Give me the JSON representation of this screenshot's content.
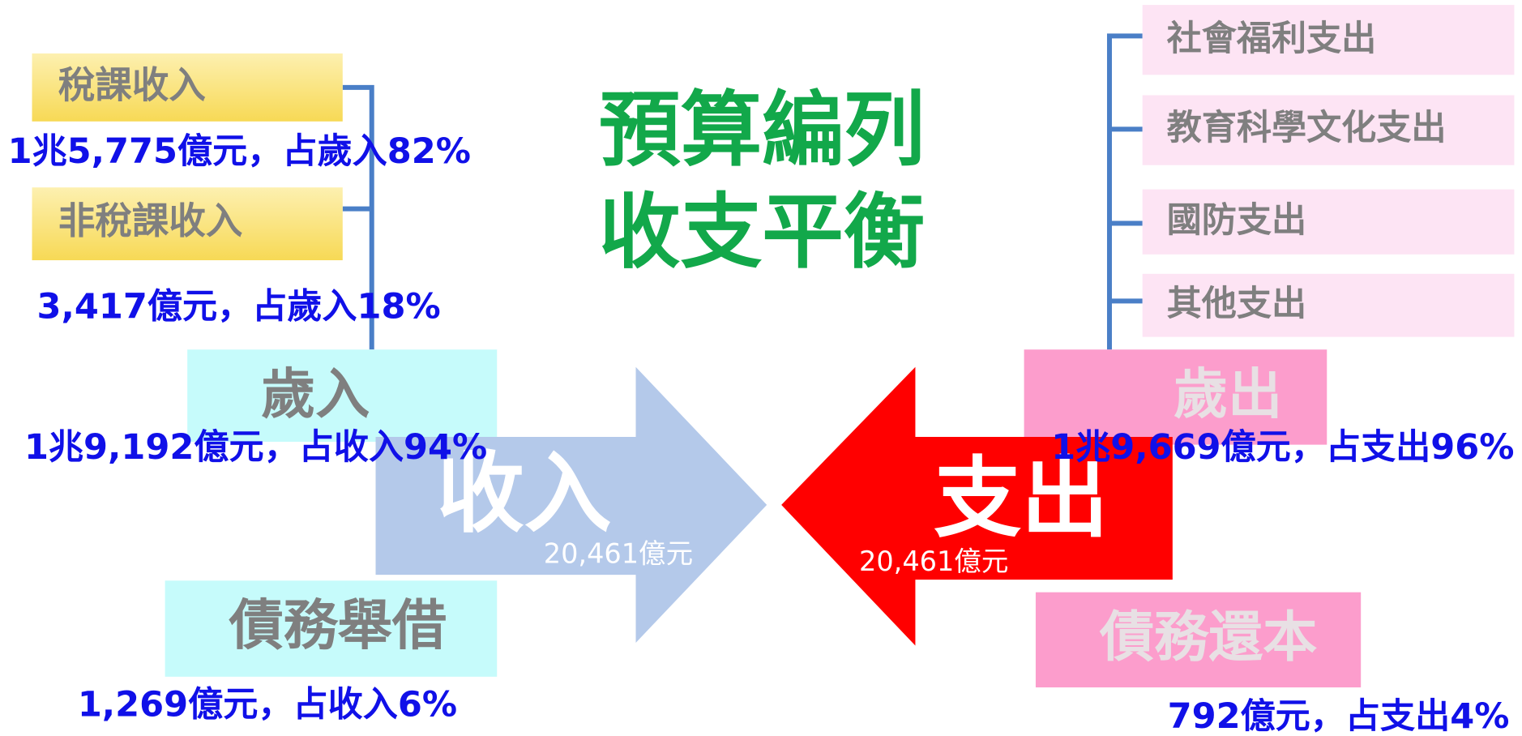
{
  "title": [
    "預算編列",
    "收支平衡"
  ],
  "income": {
    "label": "收入",
    "amount": "20,461億元"
  },
  "expense": {
    "label": "支出",
    "amount": "20,461億元"
  },
  "revenue": {
    "label": "歲入",
    "amount": "1兆9,192億元，占收入94%",
    "items": [
      {
        "label": "稅課收入",
        "amount": "1兆5,775億元，占歲入82%"
      },
      {
        "label": "非稅課收入",
        "amount": "3,417億元，占歲入18%"
      }
    ]
  },
  "borrowing": {
    "label": "債務舉借",
    "amount": "1,269億元，占收入6%"
  },
  "expenditure": {
    "label": "歲出",
    "amount": "1兆9,669億元，占支出96%",
    "items": [
      "社會福利支出",
      "教育科學文化支出",
      "國防支出",
      "其他支出"
    ]
  },
  "repayment": {
    "label": "債務還本",
    "amount": "792億元，占支出4%"
  }
}
